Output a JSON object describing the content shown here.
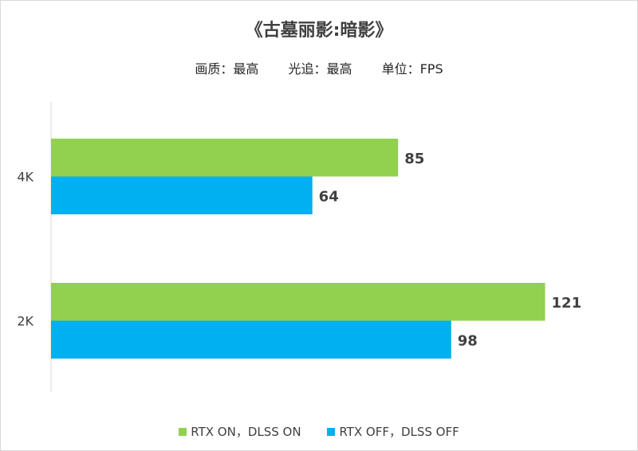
{
  "chart_data": {
    "type": "bar",
    "orientation": "horizontal",
    "title": "《古墓丽影:暗影》",
    "subtitle": [
      "画质：最高",
      "光追：最高",
      "单位：FPS"
    ],
    "categories": [
      "4K",
      "2K"
    ],
    "series": [
      {
        "name": "RTX ON，DLSS ON",
        "color": "#92d050",
        "values": [
          85,
          121
        ]
      },
      {
        "name": "RTX OFF，DLSS OFF",
        "color": "#00b0f0",
        "values": [
          64,
          98
        ]
      }
    ],
    "xlim": [
      0,
      140
    ],
    "grid": false,
    "data_labels": true,
    "legend_position": "bottom"
  }
}
